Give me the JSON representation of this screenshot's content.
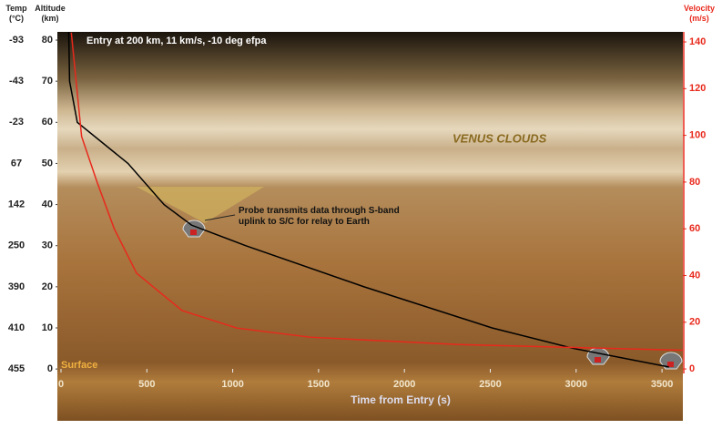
{
  "chart_data": {
    "type": "line",
    "title": "Entry at 200 km, 11 km/s, -10 deg efpa",
    "xlabel": "Time from Entry (s)",
    "ylabel": "Altitude (km)",
    "y2label": "Velocity (m/s)",
    "temp_label": "Temp (°C)",
    "temperature_labels": [
      "455",
      "410",
      "390",
      "250",
      "142",
      "67",
      "-23",
      "-43",
      "-93"
    ],
    "annotations": [
      "VENUS CLOUDS",
      "Probe transmits data through S-band uplink to S/C for relay to Earth",
      "Surface"
    ],
    "xlim": [
      0,
      3620
    ],
    "xticks": [
      0,
      500,
      1000,
      1500,
      2000,
      2500,
      3000,
      3500
    ],
    "ylim": [
      -12.6,
      82
    ],
    "yticks": [
      0,
      10,
      20,
      30,
      40,
      50,
      60,
      70,
      80
    ],
    "y2lim": [
      -22.2,
      144.3
    ],
    "y2ticks": [
      0,
      20,
      40,
      60,
      80,
      100,
      120,
      140
    ],
    "series": [
      {
        "color": "#000000",
        "x": [
          45,
          50,
          95,
          390,
          600,
          760,
          1075,
          1765,
          2510,
          2985,
          3355,
          3540
        ],
        "values": [
          82,
          70,
          60,
          50,
          40,
          35,
          30,
          20,
          10,
          5,
          2,
          0.5
        ]
      },
      {
        "color": "#e8291c",
        "axis": "y2",
        "x": [
          60,
          120,
          210,
          310,
          440,
          705,
          1025,
          1450,
          2300,
          3090,
          3620
        ],
        "values": [
          144,
          99.5,
          80,
          60,
          41,
          25,
          17.5,
          13.6,
          10.5,
          9,
          8
        ]
      }
    ]
  }
}
